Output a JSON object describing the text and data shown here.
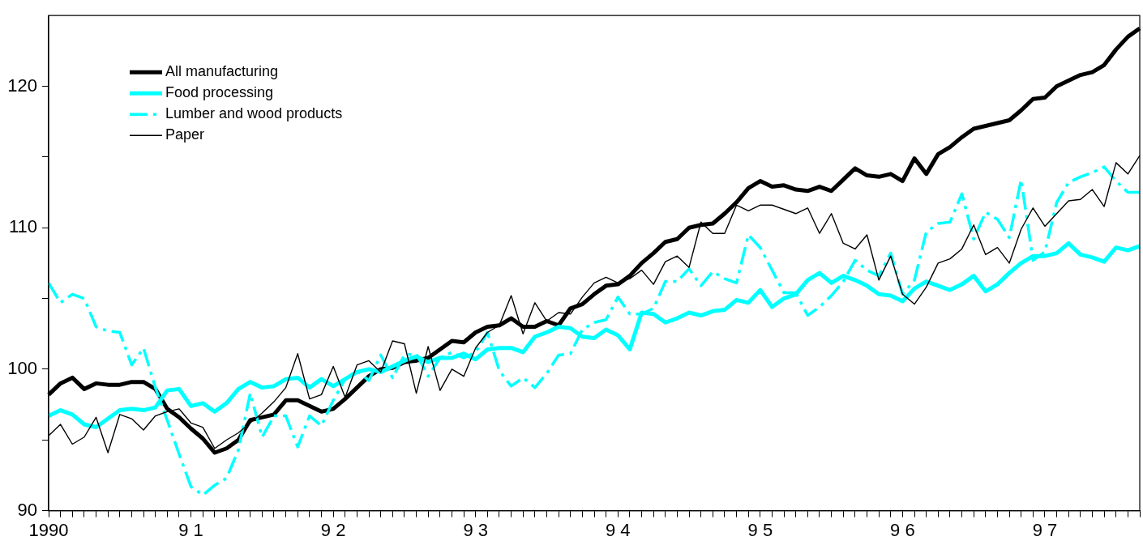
{
  "chart_data": {
    "type": "line",
    "categories": [
      "1990",
      null,
      null,
      null,
      null,
      null,
      null,
      null,
      null,
      null,
      null,
      null,
      "9 1",
      null,
      null,
      null,
      null,
      null,
      null,
      null,
      null,
      null,
      null,
      null,
      "9 2",
      null,
      null,
      null,
      null,
      null,
      null,
      null,
      null,
      null,
      null,
      null,
      "9 3",
      null,
      null,
      null,
      null,
      null,
      null,
      null,
      null,
      null,
      null,
      null,
      "9 4",
      null,
      null,
      null,
      null,
      null,
      null,
      null,
      null,
      null,
      null,
      null,
      "9 5",
      null,
      null,
      null,
      null,
      null,
      null,
      null,
      null,
      null,
      null,
      null,
      "9 6",
      null,
      null,
      null,
      null,
      null,
      null,
      null,
      null,
      null,
      null,
      null,
      "9 7",
      null,
      null,
      null,
      null,
      null,
      null,
      null,
      null
    ],
    "series": [
      {
        "name": "All manufacturing",
        "color": "#000000",
        "line_style": "solid",
        "values": [
          98.2,
          99.0,
          99.4,
          98.6,
          99.0,
          98.9,
          98.9,
          99.1,
          99.1,
          98.6,
          97.2,
          96.6,
          95.8,
          95.1,
          94.1,
          94.4,
          95.0,
          96.4,
          96.6,
          96.8,
          97.8,
          97.8,
          97.4,
          97.0,
          97.2,
          97.9,
          98.7,
          99.5,
          100.0,
          100.1,
          100.5,
          100.6,
          100.8,
          101.4,
          102.0,
          101.9,
          102.6,
          103.0,
          103.1,
          103.6,
          103.0,
          103.0,
          103.4,
          103.1,
          104.3,
          104.6,
          105.3,
          105.9,
          106.0,
          106.6,
          107.5,
          108.2,
          109.0,
          109.2,
          110.0,
          110.2,
          110.3,
          111.0,
          111.8,
          112.8,
          113.3,
          112.9,
          113.0,
          112.7,
          112.6,
          112.9,
          112.6,
          113.4,
          114.2,
          113.7,
          113.6,
          113.8,
          113.3,
          114.9,
          113.8,
          115.2,
          115.7,
          116.4,
          117.0,
          117.2,
          117.4,
          117.6,
          118.3,
          119.1,
          119.2,
          120.0,
          120.4,
          120.8,
          121.0,
          121.5,
          122.6,
          123.5,
          124.1
        ]
      },
      {
        "name": "Food processing",
        "color": "#00ffff",
        "line_style": "solid",
        "values": [
          96.7,
          97.1,
          96.8,
          96.1,
          95.9,
          96.5,
          97.1,
          97.2,
          97.1,
          97.3,
          98.5,
          98.6,
          97.4,
          97.6,
          97.0,
          97.6,
          98.6,
          99.1,
          98.7,
          98.8,
          99.3,
          99.4,
          98.7,
          99.3,
          98.8,
          99.3,
          99.8,
          100.0,
          99.8,
          100.2,
          100.6,
          100.9,
          100.5,
          100.8,
          100.8,
          101.1,
          100.7,
          101.4,
          101.5,
          101.5,
          101.2,
          102.3,
          102.6,
          103.0,
          102.9,
          102.3,
          102.2,
          102.8,
          102.4,
          101.4,
          104.0,
          103.9,
          103.3,
          103.6,
          104.0,
          103.8,
          104.1,
          104.2,
          104.9,
          104.7,
          105.6,
          104.4,
          105.0,
          105.3,
          106.3,
          106.8,
          106.1,
          106.6,
          106.3,
          105.9,
          105.3,
          105.2,
          104.8,
          105.7,
          106.2,
          105.9,
          105.6,
          106.0,
          106.6,
          105.5,
          106.0,
          106.8,
          107.5,
          108.0,
          108.0,
          108.2,
          108.9,
          108.1,
          107.9,
          107.6,
          108.6,
          108.4,
          108.7
        ]
      },
      {
        "name": "Lumber and wood products",
        "color": "#00ffff",
        "line_style": "dashed",
        "values": [
          106.1,
          104.7,
          105.3,
          105.0,
          103.0,
          102.7,
          102.6,
          100.3,
          101.5,
          98.7,
          96.4,
          94.0,
          91.7,
          91.1,
          91.8,
          92.3,
          94.3,
          98.3,
          95.2,
          96.7,
          96.7,
          94.5,
          96.7,
          96.0,
          97.8,
          99.3,
          99.9,
          99.2,
          101.0,
          99.4,
          101.0,
          101.1,
          99.5,
          100.8,
          101.2,
          100.8,
          101.2,
          102.6,
          99.9,
          98.8,
          99.4,
          98.7,
          99.7,
          101.0,
          101.1,
          102.8,
          103.3,
          103.5,
          105.1,
          103.9,
          103.9,
          104.3,
          106.2,
          106.2,
          107.1,
          105.9,
          106.9,
          106.4,
          106.1,
          109.5,
          108.6,
          107.0,
          105.4,
          105.4,
          103.8,
          104.4,
          105.2,
          106.2,
          107.7,
          107.0,
          106.6,
          108.2,
          105.3,
          106.3,
          109.7,
          110.3,
          110.4,
          112.4,
          109.2,
          111.1,
          110.6,
          109.3,
          113.4,
          107.7,
          108.3,
          111.8,
          113.2,
          113.6,
          113.9,
          114.3,
          113.3,
          112.5,
          112.5
        ]
      },
      {
        "name": "Paper",
        "color": "#000000",
        "line_style": "solid",
        "values": [
          95.3,
          96.1,
          94.7,
          95.2,
          96.6,
          94.1,
          96.8,
          96.5,
          95.7,
          96.7,
          97.0,
          97.2,
          96.2,
          95.9,
          94.4,
          95.0,
          95.5,
          96.2,
          96.9,
          97.7,
          98.7,
          101.1,
          97.9,
          98.2,
          100.2,
          98.0,
          100.3,
          100.6,
          99.8,
          102.0,
          101.8,
          98.3,
          101.6,
          98.5,
          100.0,
          99.5,
          101.5,
          102.6,
          103.1,
          105.2,
          102.5,
          104.7,
          103.4,
          104.0,
          103.9,
          105.1,
          106.1,
          106.5,
          106.1,
          106.4,
          107.0,
          106.0,
          107.6,
          108.0,
          107.2,
          110.4,
          109.6,
          109.6,
          111.6,
          111.2,
          111.6,
          111.6,
          111.3,
          111.0,
          111.4,
          109.6,
          111.0,
          108.9,
          108.5,
          109.5,
          106.3,
          108.0,
          105.3,
          104.6,
          105.8,
          107.5,
          107.8,
          108.5,
          110.2,
          108.1,
          108.6,
          107.5,
          109.9,
          111.4,
          110.1,
          111.0,
          111.9,
          112.0,
          112.7,
          111.5,
          114.6,
          113.8,
          115.1
        ]
      }
    ],
    "ylim": [
      90,
      125
    ],
    "yticks": [
      90,
      {
        "value": 95,
        "label": null
      },
      100,
      {
        "value": 105,
        "label": null
      },
      110,
      {
        "value": 115,
        "label": null
      },
      120
    ],
    "grid": false,
    "legend": "top left",
    "marker": "none"
  }
}
